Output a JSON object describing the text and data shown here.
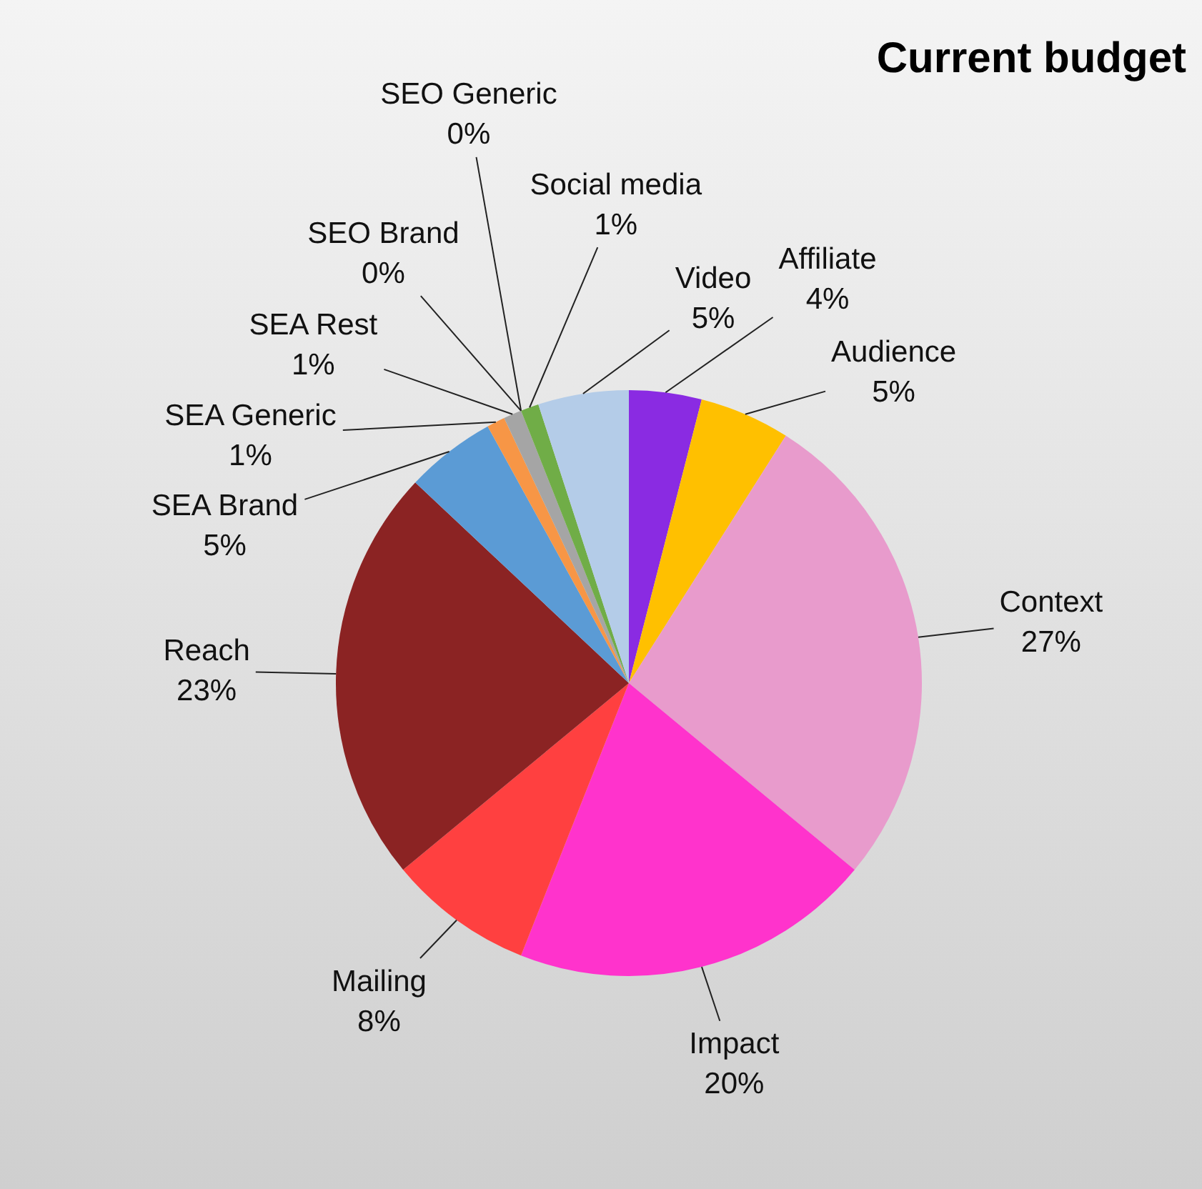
{
  "chart_data": {
    "type": "pie",
    "title": "Current budget",
    "categories": [
      "Affiliate",
      "Audience",
      "Context",
      "Impact",
      "Mailing",
      "Reach",
      "SEA Brand",
      "SEA Generic",
      "SEA Rest",
      "SEO Brand",
      "SEO Generic",
      "Social media",
      "Video"
    ],
    "values": [
      4,
      5,
      27,
      20,
      8,
      23,
      5,
      1,
      1,
      0,
      0,
      1,
      5
    ],
    "value_labels": [
      "4%",
      "5%",
      "27%",
      "20%",
      "8%",
      "23%",
      "5%",
      "1%",
      "1%",
      "0%",
      "0%",
      "1%",
      "5%"
    ],
    "colors": [
      "#8a2be2",
      "#ffc000",
      "#e89bcc",
      "#ff33cc",
      "#ff4040",
      "#8b2323",
      "#5b9bd5",
      "#f79646",
      "#a5a5a5",
      "#4f81bd",
      "#c0504d",
      "#70ad47",
      "#b4cce8"
    ],
    "legend": false
  }
}
